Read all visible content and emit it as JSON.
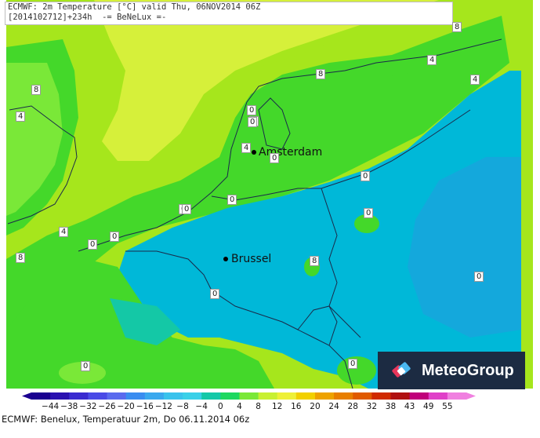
{
  "header": {
    "line1": "ECMWF: 2m Temperature [°C] valid Thu, 06NOV2014 06Z",
    "line2": "[2014102712]+234h  -= BeNeLux =-"
  },
  "cities": [
    {
      "name": "Amsterdam"
    },
    {
      "name": "Brussel"
    }
  ],
  "contour_labels": [
    "8",
    "4",
    "8",
    "4",
    "8",
    "4",
    "0",
    "4",
    "4",
    "0",
    "0",
    "0",
    "0",
    "0",
    "0",
    "0",
    "4",
    "8",
    "8",
    "0",
    "0",
    "0",
    "0",
    "0",
    "0",
    "0",
    "0"
  ],
  "logo": {
    "text": "MeteoGroup"
  },
  "colorscale": {
    "ticks": [
      "−44",
      "−38",
      "−32",
      "−26",
      "−20",
      "−16",
      "−12",
      "−8",
      "−4",
      "0",
      "4",
      "8",
      "12",
      "16",
      "20",
      "24",
      "28",
      "32",
      "38",
      "43",
      "49",
      "55"
    ],
    "colors": [
      "#1a0090",
      "#2a10b0",
      "#3a2ad0",
      "#4a4ae6",
      "#5a6aee",
      "#3a8cf0",
      "#3aa8ee",
      "#39c2ec",
      "#39d0e8",
      "#14c8a8",
      "#1ed860",
      "#7ae838",
      "#c8f032",
      "#eef038",
      "#f2d000",
      "#eea200",
      "#e87e00",
      "#e05a00",
      "#d02a00",
      "#b01010",
      "#c0007a",
      "#e040c8",
      "#f080e0"
    ],
    "note": "colors of the legend bar, left to right"
  },
  "map_colors": {
    "sea_warm": "#d6f03a",
    "sea_mid": "#a6e61c",
    "coast": "#44d82a",
    "land_zero": "#14c8a6",
    "land_cold": "#00b8d8",
    "land_colder": "#14a8dc"
  },
  "footer": {
    "text": "ECMWF: Benelux, Temperatuur 2m, Do 06.11.2014 06z"
  }
}
